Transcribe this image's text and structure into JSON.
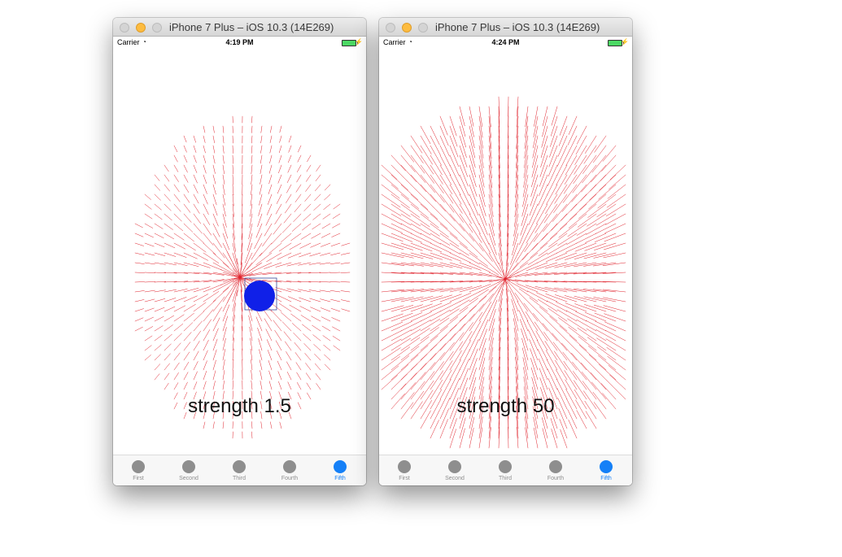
{
  "windows": [
    {
      "title": "iPhone 7 Plus – iOS 10.3 (14E269)",
      "status": {
        "carrier": "Carrier",
        "time": "4:19 PM"
      },
      "label": "strength 1.5",
      "tabs": [
        {
          "label": "First"
        },
        {
          "label": "Second"
        },
        {
          "label": "Third"
        },
        {
          "label": "Fourth"
        },
        {
          "label": "Fifth",
          "selected": true
        }
      ],
      "field": {
        "strength": 1.5,
        "arrow_color": "#e0202a",
        "ball_color": "#1020e8",
        "frame_color": "#3a4a9a"
      }
    },
    {
      "title": "iPhone 7 Plus – iOS 10.3 (14E269)",
      "status": {
        "carrier": "Carrier",
        "time": "4:24 PM"
      },
      "label": "strength 50",
      "tabs": [
        {
          "label": "First"
        },
        {
          "label": "Second"
        },
        {
          "label": "Third"
        },
        {
          "label": "Fourth"
        },
        {
          "label": "Fifth",
          "selected": true
        }
      ],
      "field": {
        "strength": 50,
        "arrow_color": "#e0202a"
      }
    }
  ]
}
